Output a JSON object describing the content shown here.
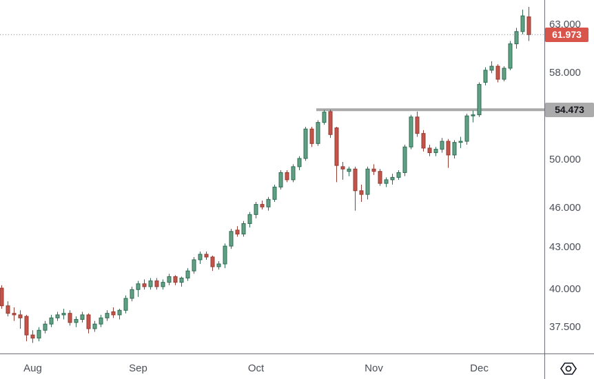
{
  "chart": {
    "last_price_label": "61.973",
    "level_label": "54.473"
  },
  "chart_data": {
    "type": "candlestick",
    "title": "",
    "x_axis": {
      "labels": [
        "Aug",
        "Sep",
        "Oct",
        "Nov",
        "Dec"
      ],
      "label_indices": [
        5,
        22,
        41,
        60,
        77
      ]
    },
    "y_axis": {
      "scale": "log",
      "price_at_top": 65.77,
      "price_at_bottom": 35.84,
      "ticks": [
        63.0,
        58.0,
        50.0,
        46.0,
        43.0,
        40.0,
        37.5
      ],
      "tick_labels": [
        "63.000",
        "58.000",
        "50.000",
        "46.000",
        "43.000",
        "40.000",
        "37.500"
      ]
    },
    "last_price": 61.973,
    "horizontal_line": {
      "price": 54.473,
      "start_index": 51,
      "label": "54.473"
    },
    "grid": "off",
    "candles_format": "[open, high, low, close]",
    "candles": [
      [
        40.1,
        40.3,
        38.7,
        38.9
      ],
      [
        38.9,
        39.2,
        38.2,
        38.4
      ],
      [
        38.4,
        38.8,
        37.9,
        38.3
      ],
      [
        38.3,
        38.6,
        37.4,
        38.1
      ],
      [
        38.2,
        38.3,
        36.6,
        37.0
      ],
      [
        37.0,
        37.3,
        36.5,
        36.8
      ],
      [
        36.8,
        37.5,
        36.6,
        37.3
      ],
      [
        37.3,
        37.9,
        37.1,
        37.7
      ],
      [
        37.7,
        38.3,
        37.5,
        38.1
      ],
      [
        38.1,
        38.5,
        37.9,
        38.3
      ],
      [
        38.3,
        38.7,
        38.0,
        38.4
      ],
      [
        38.4,
        38.6,
        37.6,
        37.8
      ],
      [
        37.8,
        38.2,
        37.5,
        38.0
      ],
      [
        38.0,
        38.5,
        37.8,
        38.3
      ],
      [
        38.3,
        38.4,
        37.1,
        37.4
      ],
      [
        37.4,
        37.9,
        37.2,
        37.7
      ],
      [
        37.7,
        38.3,
        37.5,
        38.1
      ],
      [
        38.1,
        38.6,
        37.9,
        38.4
      ],
      [
        38.5,
        38.8,
        38.1,
        38.3
      ],
      [
        38.3,
        38.7,
        38.0,
        38.6
      ],
      [
        38.6,
        39.6,
        38.4,
        39.4
      ],
      [
        39.4,
        40.2,
        39.2,
        40.0
      ],
      [
        40.0,
        40.6,
        39.5,
        40.4
      ],
      [
        40.4,
        40.7,
        40.0,
        40.2
      ],
      [
        40.2,
        40.8,
        40.0,
        40.6
      ],
      [
        40.6,
        40.8,
        40.0,
        40.2
      ],
      [
        40.2,
        40.7,
        40.0,
        40.5
      ],
      [
        40.5,
        41.1,
        40.3,
        40.9
      ],
      [
        40.9,
        41.0,
        40.3,
        40.5
      ],
      [
        40.5,
        40.9,
        40.2,
        40.8
      ],
      [
        40.8,
        41.5,
        40.6,
        41.3
      ],
      [
        41.3,
        42.3,
        41.1,
        42.1
      ],
      [
        42.1,
        42.7,
        41.8,
        42.5
      ],
      [
        42.5,
        42.7,
        42.1,
        42.3
      ],
      [
        42.3,
        42.4,
        41.3,
        41.6
      ],
      [
        41.6,
        42.0,
        41.4,
        41.8
      ],
      [
        41.8,
        43.3,
        41.5,
        43.1
      ],
      [
        43.1,
        44.4,
        42.9,
        44.2
      ],
      [
        44.3,
        44.6,
        43.8,
        44.0
      ],
      [
        44.0,
        45.0,
        43.8,
        44.8
      ],
      [
        44.8,
        45.7,
        44.5,
        45.5
      ],
      [
        45.5,
        46.5,
        45.2,
        46.3
      ],
      [
        46.3,
        46.6,
        45.9,
        46.1
      ],
      [
        46.1,
        46.9,
        45.8,
        46.7
      ],
      [
        46.7,
        47.9,
        46.5,
        47.7
      ],
      [
        47.7,
        49.1,
        47.5,
        48.9
      ],
      [
        48.9,
        49.1,
        48.1,
        48.3
      ],
      [
        48.3,
        49.6,
        48.1,
        49.4
      ],
      [
        49.4,
        50.3,
        49.1,
        50.1
      ],
      [
        50.1,
        52.9,
        49.9,
        52.7
      ],
      [
        52.7,
        52.9,
        51.1,
        51.4
      ],
      [
        51.4,
        53.5,
        51.2,
        53.3
      ],
      [
        53.3,
        54.45,
        53.1,
        54.25
      ],
      [
        54.3,
        54.473,
        51.9,
        52.2
      ],
      [
        52.8,
        52.9,
        48.1,
        49.5
      ],
      [
        49.4,
        49.8,
        48.3,
        49.2
      ],
      [
        49.0,
        49.4,
        48.6,
        49.2
      ],
      [
        49.2,
        49.4,
        45.8,
        47.4
      ],
      [
        47.4,
        47.9,
        46.5,
        47.1
      ],
      [
        47.1,
        49.4,
        46.7,
        49.2
      ],
      [
        49.2,
        49.6,
        48.7,
        49.0
      ],
      [
        49.0,
        49.2,
        47.8,
        48.0
      ],
      [
        48.0,
        48.5,
        47.7,
        48.3
      ],
      [
        48.3,
        48.8,
        47.9,
        48.5
      ],
      [
        48.5,
        49.1,
        48.3,
        48.9
      ],
      [
        48.9,
        51.3,
        48.6,
        51.1
      ],
      [
        51.1,
        54.0,
        50.9,
        53.8
      ],
      [
        53.8,
        54.3,
        52.0,
        52.3
      ],
      [
        52.3,
        52.6,
        50.7,
        51.0
      ],
      [
        51.0,
        51.3,
        50.3,
        50.6
      ],
      [
        50.6,
        51.1,
        50.3,
        50.9
      ],
      [
        50.9,
        51.9,
        50.6,
        51.6
      ],
      [
        51.6,
        51.8,
        49.3,
        50.4
      ],
      [
        50.4,
        51.7,
        50.1,
        51.5
      ],
      [
        51.5,
        52.0,
        51.0,
        51.6
      ],
      [
        51.6,
        54.1,
        51.3,
        53.9
      ],
      [
        53.9,
        54.4,
        53.3,
        54.0
      ],
      [
        54.0,
        57.1,
        53.8,
        56.9
      ],
      [
        57.1,
        58.6,
        56.8,
        58.3
      ],
      [
        58.3,
        59.2,
        58.0,
        58.7
      ],
      [
        58.7,
        58.9,
        57.1,
        57.4
      ],
      [
        57.4,
        58.7,
        57.2,
        58.5
      ],
      [
        58.5,
        61.3,
        58.3,
        61.0
      ],
      [
        61.0,
        62.7,
        60.5,
        62.3
      ],
      [
        62.3,
        64.7,
        62.0,
        64.0
      ],
      [
        63.9,
        65.0,
        61.3,
        61.973
      ]
    ],
    "legend_position": "none"
  },
  "colors": {
    "up_fill": "#60a085",
    "up_border": "#2f6b52",
    "down_fill": "#c2544b",
    "down_border": "#943b32",
    "ray": "#a9a9a9",
    "last_price_line": "#85888f",
    "badge_red_bg": "#d9544a",
    "badge_gray_bg": "#ababab",
    "axis_line": "#6b6e76",
    "text": "#4a4e57"
  },
  "toolbar": {
    "scale_settings_icon": "hexagon-with-circle"
  }
}
